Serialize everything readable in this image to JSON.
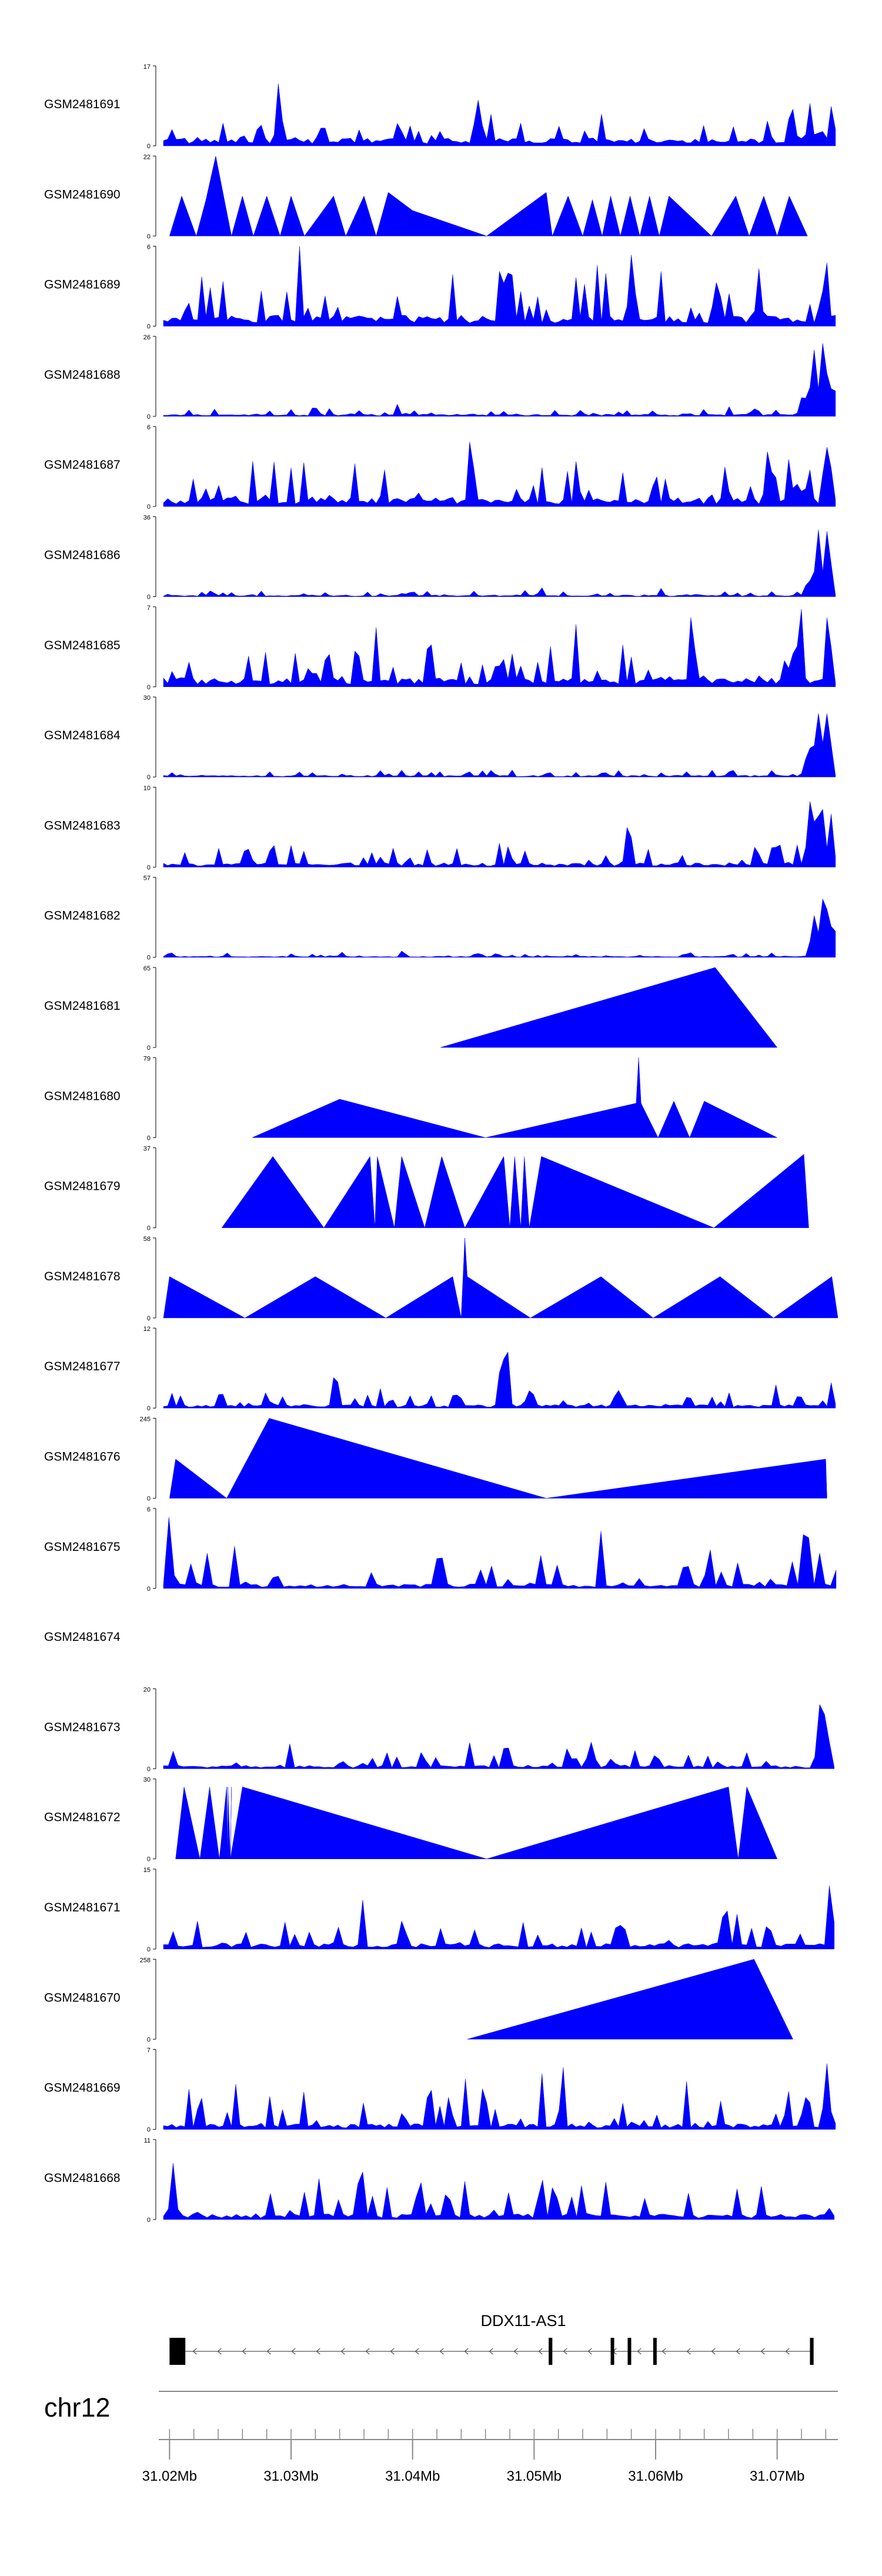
{
  "chart_data": {
    "type": "area",
    "title": "",
    "chromosome": "chr12",
    "gene": {
      "name": "DDX11-AS1",
      "strand": "-",
      "exons": [
        [
          31.02,
          31.0213
        ],
        [
          31.0512,
          31.0515
        ],
        [
          31.0563,
          31.0565
        ],
        [
          31.0577,
          31.0579
        ],
        [
          31.0598,
          31.06
        ],
        [
          31.0727,
          31.073
        ]
      ]
    },
    "x_axis": {
      "min": 31.0195,
      "max": 31.075,
      "unit": "Mb",
      "major_ticks": [
        31.02,
        31.03,
        31.04,
        31.05,
        31.06,
        31.07
      ],
      "tick_labels": [
        "31.02Mb",
        "31.03Mb",
        "31.04Mb",
        "31.05Mb",
        "31.06Mb",
        "31.07Mb"
      ],
      "minor_tick_step": 0.002
    },
    "series": [
      {
        "name": "GSM2481691",
        "ymax": 17,
        "style": "dense",
        "base": 0.07,
        "noise": 0.13,
        "step": 0.00035,
        "seed": 91,
        "peaks": [
          [
            31.029,
            17,
            0.0003
          ],
          [
            31.0454,
            10,
            0.0004
          ],
          [
            31.0712,
            9,
            0.0004
          ],
          [
            31.0727,
            12,
            0.0003
          ],
          [
            31.0745,
            11,
            0.0003
          ]
        ]
      },
      {
        "name": "GSM2481690",
        "ymax": 22,
        "style": "sparse",
        "points": [
          [
            31.02,
            0
          ],
          [
            31.021,
            11
          ],
          [
            31.0222,
            0
          ],
          [
            31.023,
            10
          ],
          [
            31.0238,
            22
          ],
          [
            31.0251,
            0
          ],
          [
            31.026,
            11
          ],
          [
            31.0269,
            0
          ],
          [
            31.028,
            11
          ],
          [
            31.0291,
            0
          ],
          [
            31.03,
            11
          ],
          [
            31.0311,
            0
          ],
          [
            31.0335,
            11
          ],
          [
            31.0345,
            0
          ],
          [
            31.036,
            11
          ],
          [
            31.037,
            0
          ],
          [
            31.038,
            12
          ],
          [
            31.04,
            7
          ],
          [
            31.0461,
            0
          ],
          [
            31.051,
            12
          ],
          [
            31.0515,
            0
          ],
          [
            31.0528,
            11
          ],
          [
            31.054,
            0
          ],
          [
            31.0548,
            10
          ],
          [
            31.0556,
            0
          ],
          [
            31.0563,
            11
          ],
          [
            31.0571,
            0
          ],
          [
            31.0579,
            11
          ],
          [
            31.0587,
            0
          ],
          [
            31.0595,
            11
          ],
          [
            31.0603,
            0
          ],
          [
            31.0611,
            11
          ],
          [
            31.0646,
            0
          ],
          [
            31.0666,
            11
          ],
          [
            31.0677,
            0
          ],
          [
            31.0689,
            11
          ],
          [
            31.07,
            0
          ],
          [
            31.071,
            11
          ],
          [
            31.0725,
            0
          ]
        ]
      },
      {
        "name": "GSM2481689",
        "ymax": 6,
        "style": "dense",
        "base": 0.1,
        "noise": 0.4,
        "step": 0.00035,
        "seed": 89,
        "peaks": [
          [
            31.048,
            6,
            0.0003
          ],
          [
            31.058,
            6,
            0.0003
          ],
          [
            31.0685,
            5,
            0.0003
          ],
          [
            31.074,
            6,
            0.0003
          ]
        ]
      },
      {
        "name": "GSM2481688",
        "ymax": 26,
        "style": "dense",
        "base": 0.02,
        "noise": 0.05,
        "step": 0.00035,
        "seed": 88,
        "peaks": [
          [
            31.0722,
            8,
            0.0004
          ],
          [
            31.073,
            22,
            0.0004
          ],
          [
            31.0738,
            25,
            0.0004
          ],
          [
            31.0746,
            14,
            0.0003
          ]
        ]
      },
      {
        "name": "GSM2481687",
        "ymax": 6,
        "style": "dense",
        "base": 0.08,
        "noise": 0.32,
        "step": 0.00035,
        "seed": 87,
        "peaks": [
          [
            31.0693,
            6,
            0.0003
          ],
          [
            31.071,
            4,
            0.0003
          ],
          [
            31.074,
            6,
            0.0003
          ]
        ]
      },
      {
        "name": "GSM2481686",
        "ymax": 36,
        "style": "dense",
        "base": 0.015,
        "noise": 0.04,
        "step": 0.00035,
        "seed": 86,
        "peaks": [
          [
            31.0726,
            10,
            0.0004
          ],
          [
            31.0734,
            32,
            0.0004
          ],
          [
            31.0742,
            34,
            0.0003
          ]
        ]
      },
      {
        "name": "GSM2481685",
        "ymax": 7,
        "style": "dense",
        "base": 0.08,
        "noise": 0.32,
        "step": 0.00035,
        "seed": 85,
        "peaks": [
          [
            31.0715,
            5,
            0.0003
          ],
          [
            31.0742,
            7,
            0.0003
          ]
        ]
      },
      {
        "name": "GSM2481684",
        "ymax": 30,
        "style": "dense",
        "base": 0.015,
        "noise": 0.05,
        "step": 0.00035,
        "seed": 84,
        "peaks": [
          [
            31.0726,
            12,
            0.0004
          ],
          [
            31.0734,
            28,
            0.0004
          ],
          [
            31.0742,
            30,
            0.0003
          ]
        ]
      },
      {
        "name": "GSM2481683",
        "ymax": 10,
        "style": "dense",
        "base": 0.04,
        "noise": 0.17,
        "step": 0.00035,
        "seed": 83,
        "peaks": [
          [
            31.0728,
            9,
            0.0004
          ],
          [
            31.0736,
            10,
            0.0003
          ],
          [
            31.0744,
            8,
            0.0003
          ]
        ]
      },
      {
        "name": "GSM2481682",
        "ymax": 57,
        "style": "dense",
        "base": 0.01,
        "noise": 0.03,
        "step": 0.00035,
        "seed": 82,
        "peaks": [
          [
            31.0731,
            40,
            0.0004
          ],
          [
            31.0739,
            57,
            0.0004
          ],
          [
            31.0746,
            30,
            0.0003
          ]
        ]
      },
      {
        "name": "GSM2481681",
        "ymax": 65,
        "style": "sparse",
        "points": [
          [
            31.0423,
            0
          ],
          [
            31.0649,
            65
          ],
          [
            31.07,
            0
          ]
        ]
      },
      {
        "name": "GSM2481680",
        "ymax": 79,
        "style": "sparse",
        "points": [
          [
            31.0268,
            0
          ],
          [
            31.034,
            38
          ],
          [
            31.046,
            0
          ],
          [
            31.0584,
            34
          ],
          [
            31.0586,
            79
          ],
          [
            31.0588,
            34
          ],
          [
            31.0602,
            0
          ],
          [
            31.0615,
            36
          ],
          [
            31.0628,
            0
          ],
          [
            31.064,
            36
          ],
          [
            31.07,
            0
          ]
        ]
      },
      {
        "name": "GSM2481679",
        "ymax": 37,
        "style": "sparse",
        "points": [
          [
            31.0243,
            0
          ],
          [
            31.0285,
            33
          ],
          [
            31.0327,
            0
          ],
          [
            31.0365,
            33
          ],
          [
            31.0369,
            0
          ],
          [
            31.0371,
            33
          ],
          [
            31.0385,
            0
          ],
          [
            31.0391,
            33
          ],
          [
            31.041,
            0
          ],
          [
            31.0424,
            33
          ],
          [
            31.0443,
            0
          ],
          [
            31.0475,
            33
          ],
          [
            31.048,
            0
          ],
          [
            31.0484,
            33
          ],
          [
            31.0489,
            0
          ],
          [
            31.0492,
            33
          ],
          [
            31.0496,
            0
          ],
          [
            31.0506,
            33
          ],
          [
            31.0648,
            0
          ],
          [
            31.0722,
            34
          ],
          [
            31.0726,
            0
          ]
        ]
      },
      {
        "name": "GSM2481678",
        "ymax": 58,
        "style": "sparse",
        "points": [
          [
            31.0195,
            0
          ],
          [
            31.02,
            30
          ],
          [
            31.0262,
            0
          ],
          [
            31.032,
            30
          ],
          [
            31.0378,
            0
          ],
          [
            31.0433,
            30
          ],
          [
            31.044,
            0
          ],
          [
            31.0443,
            58
          ],
          [
            31.0445,
            30
          ],
          [
            31.0497,
            0
          ],
          [
            31.0555,
            30
          ],
          [
            31.0598,
            0
          ],
          [
            31.0653,
            30
          ],
          [
            31.0697,
            0
          ],
          [
            31.0745,
            30
          ],
          [
            31.075,
            0
          ]
        ]
      },
      {
        "name": "GSM2481677",
        "ymax": 12,
        "style": "dense",
        "base": 0.03,
        "noise": 0.13,
        "step": 0.00035,
        "seed": 77,
        "peaks": [
          [
            31.0473,
            9,
            0.0003
          ],
          [
            31.0477,
            12,
            0.0003
          ],
          [
            31.0745,
            2,
            0.0003
          ]
        ]
      },
      {
        "name": "GSM2481676",
        "ymax": 245,
        "style": "sparse",
        "points": [
          [
            31.02,
            0
          ],
          [
            31.0205,
            120
          ],
          [
            31.0247,
            0
          ],
          [
            31.0282,
            245
          ],
          [
            31.051,
            0
          ],
          [
            31.074,
            120
          ],
          [
            31.0741,
            0
          ]
        ]
      },
      {
        "name": "GSM2481675",
        "ymax": 6,
        "style": "dense",
        "base": 0.04,
        "noise": 0.32,
        "step": 0.00045,
        "seed": 75,
        "peaks": [
          [
            31.02,
            6,
            0.0003
          ],
          [
            31.0724,
            6,
            0.0003
          ]
        ]
      },
      {
        "name": "GSM2481674",
        "ymax": null,
        "style": "empty",
        "points": []
      },
      {
        "name": "GSM2481673",
        "ymax": 20,
        "style": "dense",
        "base": 0.03,
        "noise": 0.13,
        "step": 0.0004,
        "seed": 73,
        "peaks": [
          [
            31.0477,
            9,
            0.0003
          ],
          [
            31.0735,
            18,
            0.0003
          ],
          [
            31.074,
            20,
            0.0003
          ]
        ]
      },
      {
        "name": "GSM2481672",
        "ymax": 30,
        "style": "sparse",
        "points": [
          [
            31.0205,
            0
          ],
          [
            31.0212,
            27
          ],
          [
            31.0225,
            0
          ],
          [
            31.0233,
            27
          ],
          [
            31.0241,
            0
          ],
          [
            31.0247,
            27
          ],
          [
            31.0248,
            0
          ],
          [
            31.0248,
            27
          ],
          [
            31.025,
            0
          ],
          [
            31.0251,
            27
          ],
          [
            31.025,
            0
          ],
          [
            31.026,
            27
          ],
          [
            31.0461,
            0
          ],
          [
            31.066,
            27
          ],
          [
            31.0668,
            0
          ],
          [
            31.0675,
            27
          ],
          [
            31.07,
            0
          ]
        ]
      },
      {
        "name": "GSM2481671",
        "ymax": 15,
        "style": "dense",
        "base": 0.05,
        "noise": 0.2,
        "step": 0.0004,
        "seed": 71,
        "peaks": [
          [
            31.0744,
            15,
            0.0003
          ]
        ]
      },
      {
        "name": "GSM2481670",
        "ymax": 258,
        "style": "sparse",
        "points": [
          [
            31.0445,
            0
          ],
          [
            31.0681,
            258
          ],
          [
            31.0713,
            0
          ]
        ]
      },
      {
        "name": "GSM2481669",
        "ymax": 7,
        "style": "dense",
        "base": 0.05,
        "noise": 0.32,
        "step": 0.00035,
        "seed": 69,
        "peaks": [
          [
            31.0741,
            7,
            0.0003
          ]
        ]
      },
      {
        "name": "GSM2481668",
        "ymax": 11,
        "style": "dense",
        "base": 0.05,
        "noise": 0.3,
        "step": 0.0004,
        "seed": 68,
        "peaks": [
          [
            31.0203,
            10,
            0.0003
          ]
        ]
      }
    ],
    "colors": {
      "fill": "#0000ff",
      "axis": "#000000",
      "gene": "#000000",
      "ideogram": "#888888"
    }
  }
}
